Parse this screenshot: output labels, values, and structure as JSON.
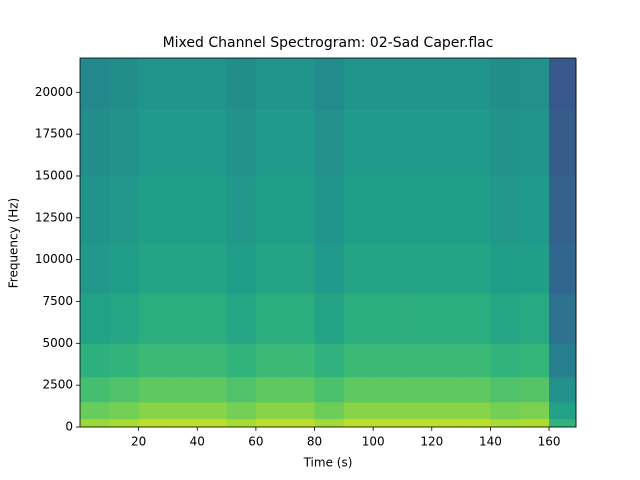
{
  "chart_data": {
    "type": "heatmap",
    "title": "Mixed Channel Spectrogram: 02-Sad Caper.flac",
    "x_label": "Time (s)",
    "y_label": "Frequency (Hz)",
    "colormap": "viridis",
    "zlim": [
      0,
      1
    ],
    "x": [
      0,
      10,
      20,
      30,
      40,
      50,
      60,
      70,
      80,
      90,
      100,
      110,
      120,
      130,
      140,
      150,
      160,
      169.2
    ],
    "y": [
      0,
      500,
      1500,
      3000,
      5000,
      8000,
      11000,
      15000,
      19000,
      22050
    ],
    "z": [
      [
        0.85,
        0.87,
        0.9,
        0.9,
        0.9,
        0.87,
        0.9,
        0.9,
        0.86,
        0.9,
        0.9,
        0.9,
        0.9,
        0.9,
        0.87,
        0.88,
        0.65
      ],
      [
        0.77,
        0.79,
        0.82,
        0.82,
        0.82,
        0.79,
        0.82,
        0.82,
        0.78,
        0.82,
        0.82,
        0.82,
        0.82,
        0.82,
        0.79,
        0.8,
        0.57
      ],
      [
        0.7,
        0.72,
        0.75,
        0.75,
        0.75,
        0.72,
        0.75,
        0.75,
        0.71,
        0.75,
        0.75,
        0.75,
        0.75,
        0.75,
        0.72,
        0.73,
        0.5
      ],
      [
        0.63,
        0.65,
        0.68,
        0.68,
        0.68,
        0.65,
        0.68,
        0.68,
        0.64,
        0.68,
        0.68,
        0.68,
        0.68,
        0.68,
        0.65,
        0.66,
        0.43
      ],
      [
        0.57,
        0.59,
        0.62,
        0.62,
        0.62,
        0.59,
        0.62,
        0.62,
        0.58,
        0.62,
        0.62,
        0.62,
        0.62,
        0.62,
        0.59,
        0.6,
        0.37
      ],
      [
        0.53,
        0.55,
        0.58,
        0.58,
        0.58,
        0.55,
        0.58,
        0.58,
        0.54,
        0.58,
        0.58,
        0.58,
        0.58,
        0.58,
        0.55,
        0.56,
        0.33
      ],
      [
        0.51,
        0.53,
        0.56,
        0.56,
        0.56,
        0.53,
        0.56,
        0.56,
        0.52,
        0.56,
        0.56,
        0.56,
        0.56,
        0.56,
        0.53,
        0.54,
        0.31
      ],
      [
        0.49,
        0.51,
        0.54,
        0.54,
        0.54,
        0.51,
        0.54,
        0.54,
        0.5,
        0.54,
        0.54,
        0.54,
        0.54,
        0.54,
        0.51,
        0.52,
        0.29
      ],
      [
        0.47,
        0.49,
        0.52,
        0.52,
        0.52,
        0.49,
        0.52,
        0.52,
        0.48,
        0.52,
        0.52,
        0.52,
        0.52,
        0.52,
        0.49,
        0.5,
        0.27
      ]
    ],
    "xlim": [
      0,
      169.2
    ],
    "ylim": [
      0,
      22050
    ],
    "xticks": [
      20,
      40,
      60,
      80,
      100,
      120,
      140,
      160
    ],
    "yticks": [
      0,
      2500,
      5000,
      7500,
      10000,
      12500,
      15000,
      17500,
      20000
    ]
  }
}
